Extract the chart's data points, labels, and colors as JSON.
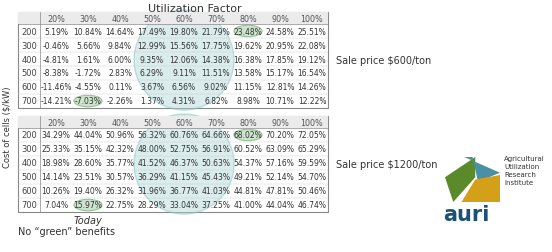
{
  "title": "Utilization Factor",
  "ylabel": "Cost of cells ($/kW)",
  "col_headers": [
    "20%",
    "30%",
    "40%",
    "50%",
    "60%",
    "70%",
    "80%",
    "90%",
    "100%"
  ],
  "row_headers": [
    "200",
    "300",
    "400",
    "500",
    "600",
    "700"
  ],
  "table1_label": "Sale price $600/ton",
  "table2_label": "Sale price $1200/ton",
  "bottom_label1": "Today",
  "bottom_label2": "No “green” benefits",
  "table1": [
    [
      "5.19%",
      "10.84%",
      "14.64%",
      "17.49%",
      "19.80%",
      "21.79%",
      "23.48%",
      "24.58%",
      "25.51%"
    ],
    [
      "-0.46%",
      "5.66%",
      "9.84%",
      "12.99%",
      "15.56%",
      "17.75%",
      "19.62%",
      "20.95%",
      "22.08%"
    ],
    [
      "-4.81%",
      "1.61%",
      "6.00%",
      "9.35%",
      "12.06%",
      "14.38%",
      "16.38%",
      "17.85%",
      "19.12%"
    ],
    [
      "-8.38%",
      "-1.72%",
      "2.83%",
      "6.29%",
      "9.11%",
      "11.51%",
      "13.58%",
      "15.17%",
      "16.54%"
    ],
    [
      "-11.46%",
      "-4.55%",
      "0.11%",
      "3.67%",
      "6.56%",
      "9.02%",
      "11.15%",
      "12.81%",
      "14.26%"
    ],
    [
      "-14.21%",
      "-7.03%",
      "-2.26%",
      "1.37%",
      "4.31%",
      "6.82%",
      "8.98%",
      "10.71%",
      "12.22%"
    ]
  ],
  "table2": [
    [
      "34.29%",
      "44.04%",
      "50.96%",
      "56.32%",
      "60.76%",
      "64.66%",
      "68.02%",
      "70.20%",
      "72.05%"
    ],
    [
      "25.33%",
      "35.15%",
      "42.32%",
      "48.00%",
      "52.75%",
      "56.91%",
      "60.52%",
      "63.09%",
      "65.29%"
    ],
    [
      "18.98%",
      "28.60%",
      "35.77%",
      "41.52%",
      "46.37%",
      "50.63%",
      "54.37%",
      "57.16%",
      "59.59%"
    ],
    [
      "14.14%",
      "23.51%",
      "30.57%",
      "36.29%",
      "41.15%",
      "45.43%",
      "49.21%",
      "52.14%",
      "54.70%"
    ],
    [
      "10.26%",
      "19.40%",
      "26.32%",
      "31.96%",
      "36.77%",
      "41.03%",
      "44.81%",
      "47.81%",
      "50.46%"
    ],
    [
      "7.04%",
      "15.97%",
      "22.75%",
      "28.29%",
      "33.04%",
      "37.25%",
      "41.00%",
      "44.04%",
      "46.74%"
    ]
  ],
  "ellipse_color": "#aed6d6",
  "ellipse_edge": "#7bbfbf",
  "single_ellipse_color": "#b8d8b8",
  "single_ellipse_edge": "#7aaa7a",
  "bg_color": "#ffffff",
  "text_color": "#333333",
  "header_text_color": "#555555",
  "table_border_color": "#888888",
  "row_header_color": "#444444"
}
